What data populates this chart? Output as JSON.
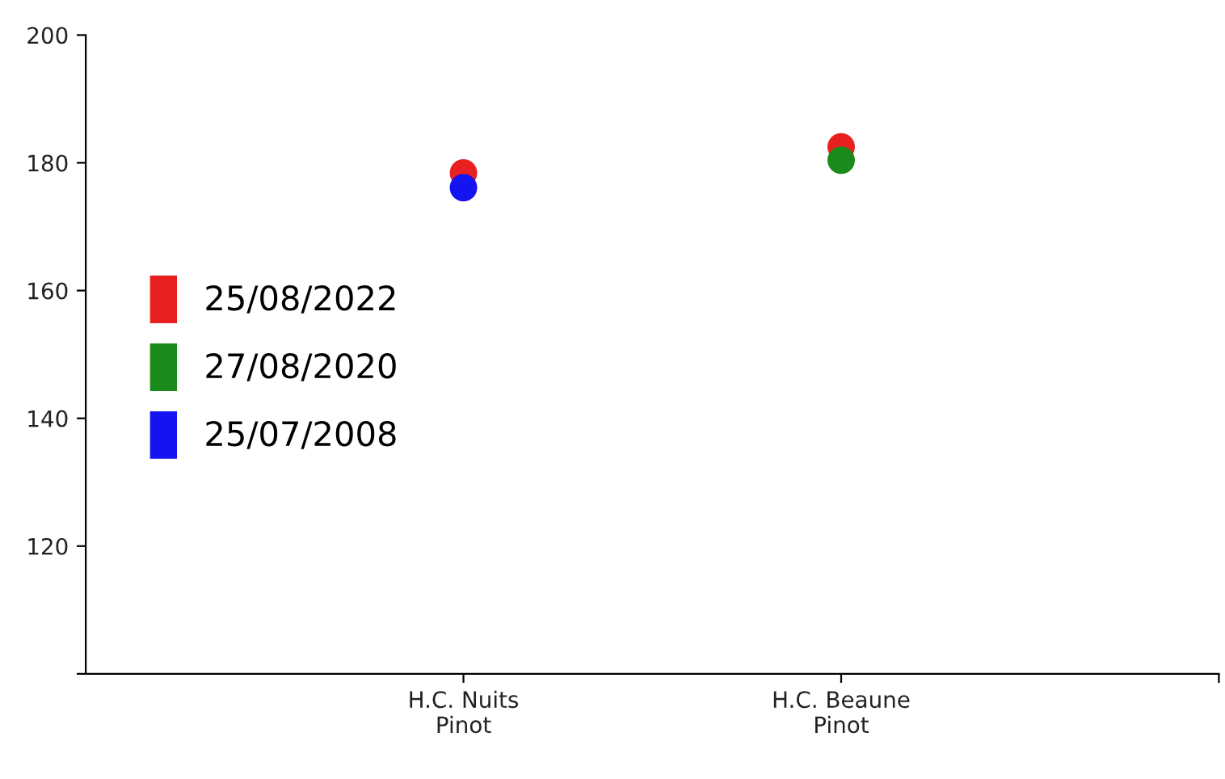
{
  "chart_data": {
    "type": "scatter",
    "categories": [
      "H.C. Nuits\nPinot",
      "H.C. Beaune\nPinot",
      null
    ],
    "series": [
      {
        "name": "25/08/2022",
        "color": "#e8201f",
        "values": [
          178.4,
          182.5,
          null
        ]
      },
      {
        "name": "27/08/2020",
        "color": "#1a8a1a",
        "values": [
          null,
          180.4,
          null
        ]
      },
      {
        "name": "25/07/2008",
        "color": "#1414f0",
        "values": [
          176.1,
          null,
          null
        ]
      }
    ],
    "ylim": [
      100,
      200
    ],
    "yticks": [
      {
        "value": 100,
        "label": null
      },
      120,
      140,
      160,
      180,
      200
    ],
    "marker": "circle",
    "grid": false,
    "legend": "left"
  }
}
